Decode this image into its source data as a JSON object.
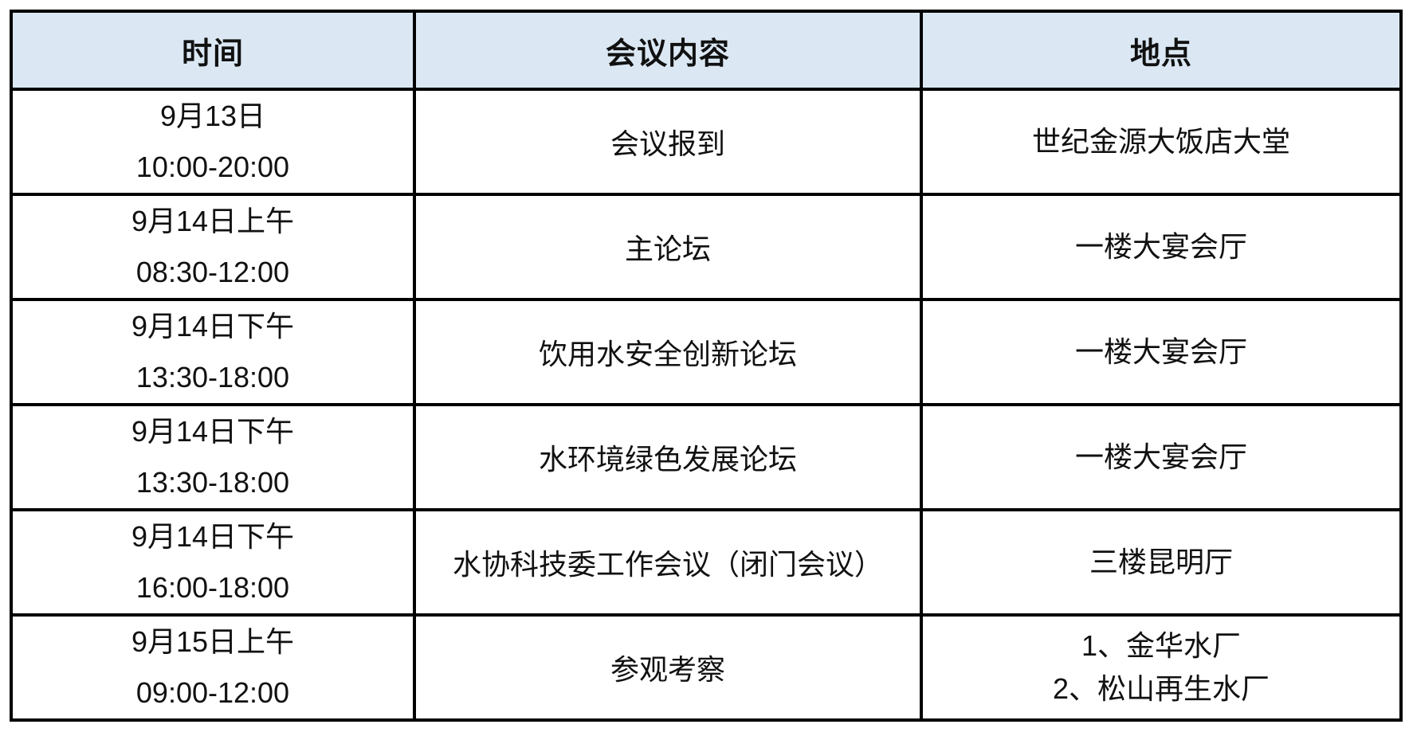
{
  "colors": {
    "header_bg": "#dbe8f4",
    "border": "#000000",
    "text": "#111111"
  },
  "table": {
    "headers": [
      "时间",
      "会议内容",
      "地点"
    ],
    "rows": [
      {
        "time": [
          "9月13日",
          "10:00-20:00"
        ],
        "content": "会议报到",
        "location": [
          "世纪金源大饭店大堂"
        ]
      },
      {
        "time": [
          "9月14日上午",
          "08:30-12:00"
        ],
        "content": "主论坛",
        "location": [
          "一楼大宴会厅"
        ]
      },
      {
        "time": [
          "9月14日下午",
          "13:30-18:00"
        ],
        "content": "饮用水安全创新论坛",
        "location": [
          "一楼大宴会厅"
        ]
      },
      {
        "time": [
          "9月14日下午",
          "13:30-18:00"
        ],
        "content": "水环境绿色发展论坛",
        "location": [
          "一楼大宴会厅"
        ]
      },
      {
        "time": [
          "9月14日下午",
          "16:00-18:00"
        ],
        "content": "水协科技委工作会议（闭门会议）",
        "location": [
          "三楼昆明厅"
        ]
      },
      {
        "time": [
          "9月15日上午",
          "09:00-12:00"
        ],
        "content": "参观考察",
        "location": [
          "1、金华水厂",
          "2、松山再生水厂"
        ]
      }
    ]
  }
}
